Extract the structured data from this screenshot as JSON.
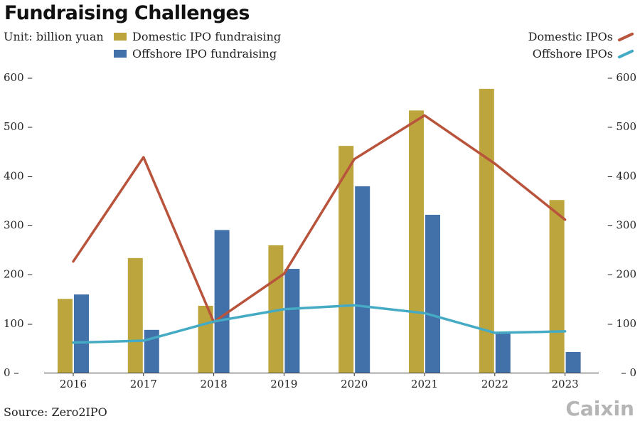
{
  "chart_data": {
    "type": "bar+line",
    "title": "Fundraising Challenges",
    "unit": "Unit: billion yuan",
    "source": "Source: Zero2IPO",
    "logo": "Caixin",
    "categories": [
      "2016",
      "2017",
      "2018",
      "2019",
      "2020",
      "2021",
      "2022",
      "2023"
    ],
    "ylim": [
      0,
      600
    ],
    "yticks": [
      0,
      100,
      200,
      300,
      400,
      500,
      600
    ],
    "y2lim": [
      0,
      600
    ],
    "bar_series": [
      {
        "name": "Domestic IPO fundraising",
        "color": "#bca53c",
        "values": [
          150,
          233,
          136,
          259,
          461,
          533,
          577,
          351
        ]
      },
      {
        "name": "Offshore IPO fundraising",
        "color": "#4270a9",
        "values": [
          159,
          87,
          290,
          211,
          379,
          321,
          81,
          42
        ]
      }
    ],
    "line_series": [
      {
        "name": "Domestic IPOs",
        "color": "#b8533c",
        "values": [
          226,
          438,
          103,
          201,
          434,
          523,
          425,
          311
        ]
      },
      {
        "name": "Offshore IPOs",
        "color": "#45aac3",
        "values": [
          61,
          65,
          104,
          129,
          137,
          121,
          81,
          84
        ]
      }
    ],
    "legend_placement": "top",
    "grid": false
  }
}
